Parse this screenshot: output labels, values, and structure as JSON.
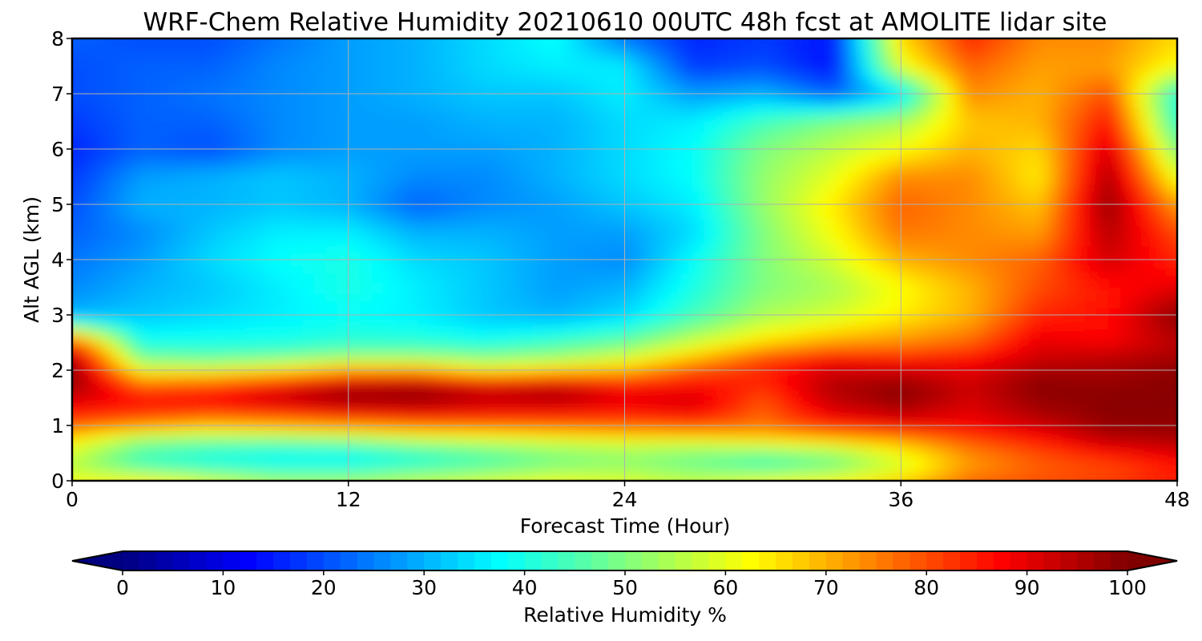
{
  "chart_data": {
    "type": "heatmap",
    "title": "WRF-Chem Relative Humidity 20210610 00UTC 48h fcst at AMOLITE lidar site",
    "xlabel": "Forecast Time (Hour)",
    "ylabel": "Alt AGL (km)",
    "xlim": [
      0,
      48
    ],
    "ylim": [
      0,
      8
    ],
    "xticks": [
      0,
      12,
      24,
      36,
      48
    ],
    "yticks": [
      0,
      1,
      2,
      3,
      4,
      5,
      6,
      7,
      8
    ],
    "grid": true,
    "colormap": "jet",
    "x": [
      0,
      3,
      6,
      9,
      12,
      15,
      18,
      21,
      24,
      27,
      30,
      33,
      36,
      39,
      42,
      45,
      48
    ],
    "y": [
      0,
      0.25,
      0.5,
      0.75,
      1.0,
      1.25,
      1.5,
      1.75,
      2.0,
      2.25,
      2.5,
      3.0,
      3.5,
      4.0,
      4.5,
      5.0,
      5.5,
      6.0,
      6.5,
      7.0,
      7.5,
      8.0
    ],
    "z": [
      [
        62,
        65,
        60,
        55,
        55,
        58,
        60,
        62,
        60,
        58,
        62,
        64,
        68,
        78,
        80,
        82,
        85
      ],
      [
        55,
        45,
        42,
        40,
        40,
        43,
        46,
        50,
        52,
        48,
        44,
        48,
        58,
        72,
        78,
        80,
        85
      ],
      [
        58,
        44,
        40,
        38,
        38,
        42,
        46,
        50,
        52,
        50,
        48,
        52,
        62,
        74,
        80,
        86,
        90
      ],
      [
        64,
        52,
        50,
        50,
        52,
        56,
        58,
        60,
        62,
        62,
        66,
        68,
        72,
        80,
        86,
        94,
        96
      ],
      [
        78,
        72,
        68,
        70,
        72,
        75,
        76,
        77,
        78,
        80,
        76,
        84,
        88,
        88,
        92,
        98,
        98
      ],
      [
        86,
        84,
        82,
        84,
        88,
        90,
        88,
        87,
        86,
        88,
        78,
        90,
        94,
        90,
        96,
        99,
        99
      ],
      [
        92,
        86,
        88,
        94,
        98,
        98,
        94,
        96,
        90,
        92,
        80,
        94,
        99,
        92,
        98,
        99,
        99
      ],
      [
        98,
        78,
        80,
        86,
        94,
        96,
        90,
        92,
        86,
        86,
        84,
        95,
        98,
        92,
        99,
        98,
        99
      ],
      [
        98,
        62,
        62,
        66,
        72,
        72,
        64,
        68,
        70,
        80,
        84,
        92,
        92,
        90,
        96,
        96,
        99
      ],
      [
        95,
        48,
        46,
        48,
        52,
        52,
        50,
        52,
        58,
        68,
        80,
        86,
        84,
        86,
        92,
        94,
        96
      ],
      [
        82,
        40,
        40,
        40,
        42,
        42,
        40,
        44,
        48,
        58,
        66,
        72,
        74,
        78,
        90,
        88,
        94
      ],
      [
        30,
        32,
        34,
        36,
        38,
        36,
        32,
        30,
        34,
        44,
        54,
        58,
        64,
        70,
        84,
        86,
        99
      ],
      [
        26,
        30,
        32,
        36,
        40,
        36,
        32,
        28,
        30,
        40,
        50,
        54,
        62,
        70,
        80,
        86,
        90
      ],
      [
        24,
        28,
        34,
        38,
        40,
        34,
        32,
        28,
        26,
        38,
        50,
        58,
        70,
        74,
        78,
        92,
        84
      ],
      [
        22,
        26,
        32,
        36,
        36,
        30,
        30,
        28,
        28,
        34,
        50,
        62,
        76,
        74,
        72,
        95,
        80
      ],
      [
        20,
        30,
        30,
        32,
        30,
        22,
        26,
        28,
        32,
        36,
        52,
        64,
        78,
        74,
        68,
        98,
        72
      ],
      [
        18,
        28,
        30,
        32,
        30,
        26,
        26,
        30,
        34,
        38,
        52,
        60,
        74,
        74,
        64,
        96,
        60
      ],
      [
        16,
        22,
        20,
        26,
        28,
        28,
        28,
        30,
        34,
        38,
        50,
        56,
        62,
        70,
        66,
        92,
        50
      ],
      [
        18,
        22,
        22,
        26,
        28,
        28,
        30,
        30,
        34,
        36,
        44,
        50,
        54,
        68,
        70,
        86,
        42
      ],
      [
        20,
        22,
        24,
        26,
        28,
        30,
        32,
        32,
        36,
        28,
        30,
        22,
        34,
        74,
        70,
        80,
        40
      ],
      [
        20,
        22,
        22,
        26,
        28,
        30,
        34,
        36,
        36,
        18,
        20,
        14,
        60,
        78,
        72,
        72,
        62
      ],
      [
        22,
        20,
        20,
        24,
        28,
        30,
        34,
        38,
        24,
        16,
        18,
        14,
        66,
        84,
        74,
        74,
        66
      ]
    ],
    "colorbar": {
      "label": "Relative Humidity %",
      "ticks": [
        0,
        10,
        20,
        30,
        40,
        50,
        60,
        70,
        80,
        90,
        100
      ],
      "range": [
        0,
        100
      ],
      "extend": "both"
    }
  }
}
